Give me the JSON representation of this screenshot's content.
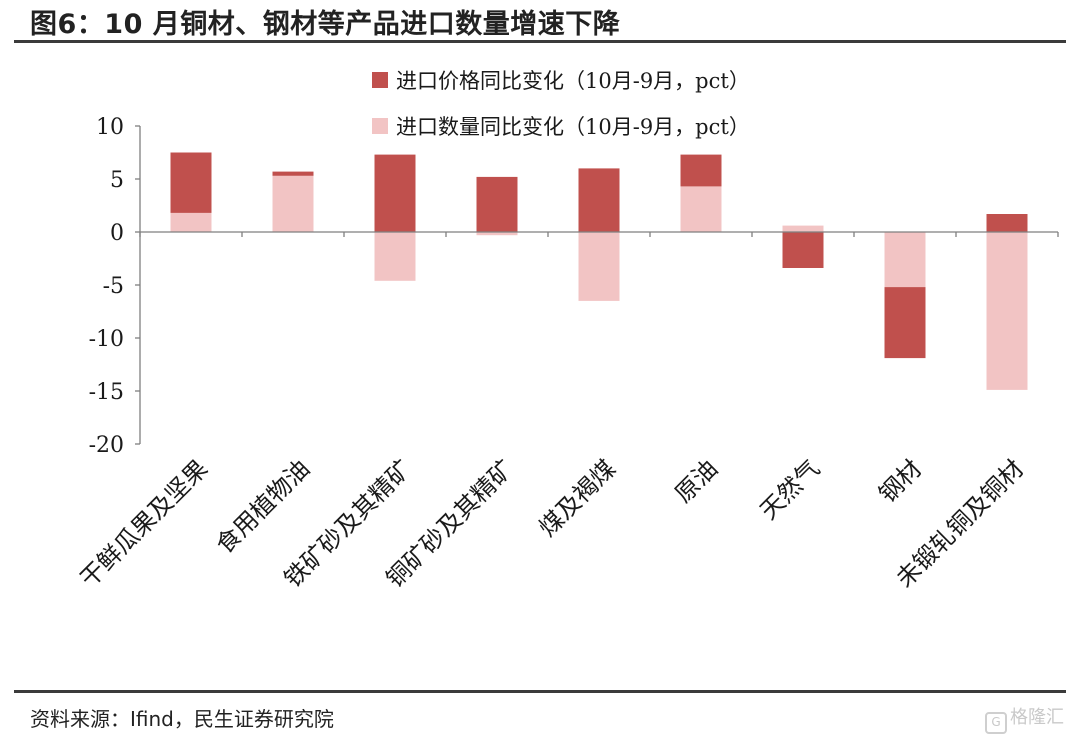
{
  "header": {
    "title": "图6：10 月铜材、钢材等产品进口数量增速下降"
  },
  "footer": {
    "source": "资料来源：Ifind，民生证券研究院",
    "watermark": "格隆汇"
  },
  "colors": {
    "price": "#c0504d",
    "quantity": "#f2c4c4",
    "axis": "#7f7f7f",
    "rule": "#3b3b3b"
  },
  "chart_data": {
    "type": "bar",
    "stacked": true,
    "categories": [
      "干鲜瓜果及坚果",
      "食用植物油",
      "铁矿砂及其精矿",
      "铜矿砂及其精矿",
      "煤及褐煤",
      "原油",
      "天然气",
      "钢材",
      "未锻轧铜及铜材"
    ],
    "series": [
      {
        "name": "进口价格同比变化（10月-9月，pct）",
        "color": "#c0504d",
        "values": [
          5.7,
          0.4,
          7.3,
          5.2,
          6.0,
          3.0,
          -3.4,
          -6.7,
          1.7
        ]
      },
      {
        "name": "进口数量同比变化（10月-9月，pct）",
        "color": "#f2c4c4",
        "values": [
          1.8,
          5.3,
          -4.6,
          -0.3,
          -6.5,
          4.3,
          0.6,
          -5.2,
          -14.9
        ]
      }
    ],
    "ylim": [
      -20,
      10
    ],
    "yticks": [
      "10",
      "5",
      "0",
      "-5",
      "-10",
      "-15",
      "-20"
    ],
    "ytick_values": [
      10,
      5,
      0,
      -5,
      -10,
      -15,
      -20
    ],
    "legend_position": "top",
    "grid": false
  }
}
